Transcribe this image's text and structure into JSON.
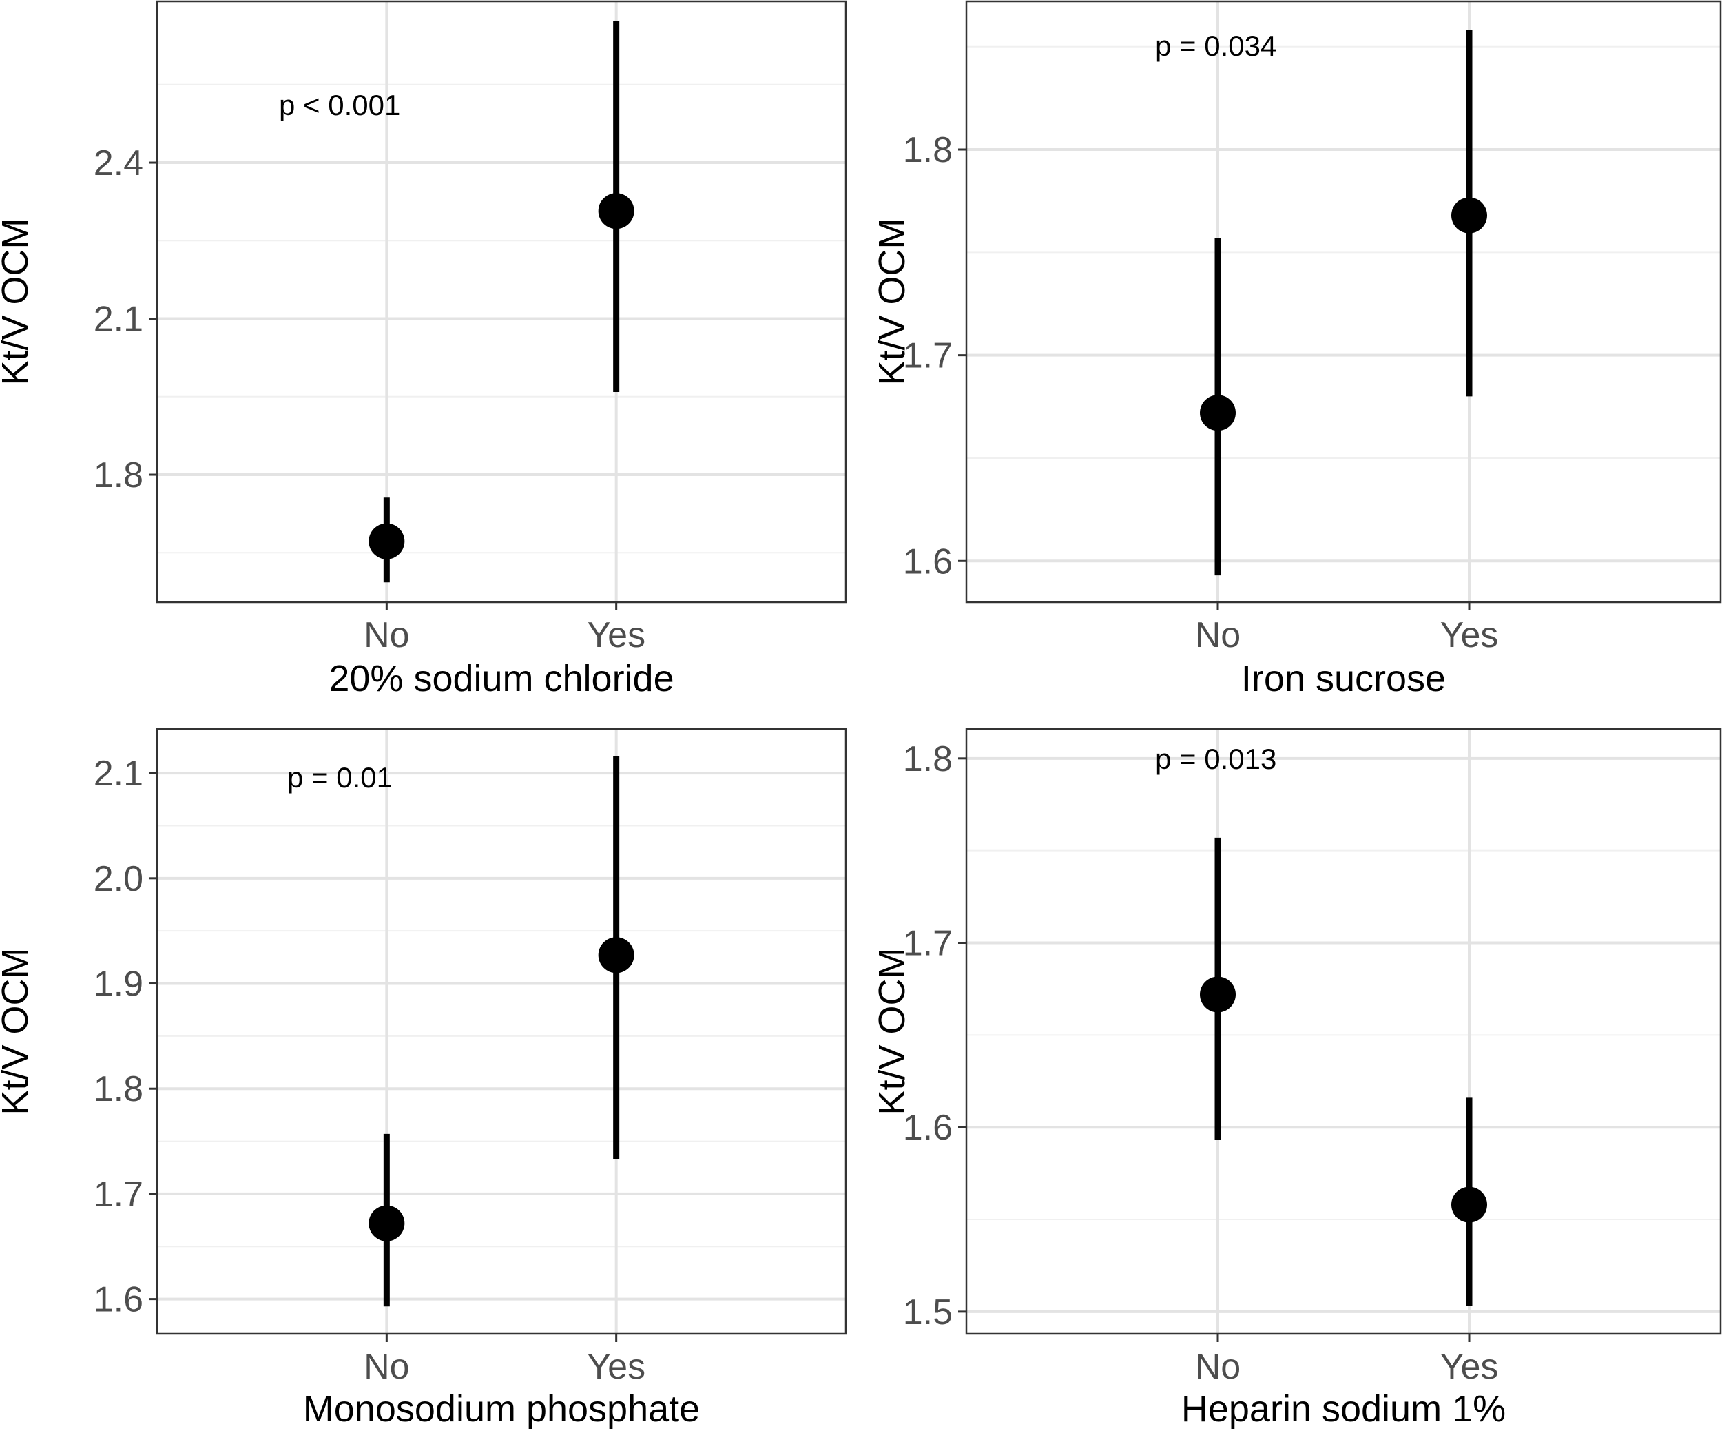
{
  "chart_data": [
    {
      "type": "pointrange",
      "xlabel": "20% sodium chloride",
      "ylabel": "Kt/V OCM",
      "annotation": "p < 0.001",
      "categories": [
        "No",
        "Yes"
      ],
      "ylim": [
        1.555,
        2.71
      ],
      "yticks": [
        1.8,
        2.1,
        2.4
      ],
      "ytick_labels": [
        "1.8",
        "2.1",
        "2.4"
      ],
      "minor_yticks": [
        1.65,
        1.95,
        2.25,
        2.55
      ],
      "points": [
        {
          "category": "No",
          "estimate": 1.672,
          "lower": 1.593,
          "upper": 1.756
        },
        {
          "category": "Yes",
          "estimate": 2.307,
          "lower": 1.959,
          "upper": 2.672
        }
      ],
      "grid": true
    },
    {
      "type": "pointrange",
      "xlabel": "Iron sucrose",
      "ylabel": "Kt/V OCM",
      "annotation": "p = 0.034",
      "categories": [
        "No",
        "Yes"
      ],
      "ylim": [
        1.58,
        1.872
      ],
      "yticks": [
        1.6,
        1.7,
        1.8
      ],
      "ytick_labels": [
        "1.6",
        "1.7",
        "1.8"
      ],
      "minor_yticks": [
        1.65,
        1.75,
        1.85
      ],
      "points": [
        {
          "category": "No",
          "estimate": 1.672,
          "lower": 1.593,
          "upper": 1.757
        },
        {
          "category": "Yes",
          "estimate": 1.768,
          "lower": 1.68,
          "upper": 1.858
        }
      ],
      "grid": true
    },
    {
      "type": "pointrange",
      "xlabel": "Monosodium phosphate",
      "ylabel": "Kt/V OCM",
      "annotation": "p = 0.01",
      "categories": [
        "No",
        "Yes"
      ],
      "ylim": [
        1.567,
        2.142
      ],
      "yticks": [
        1.6,
        1.7,
        1.8,
        1.9,
        2.0,
        2.1
      ],
      "ytick_labels": [
        "1.6",
        "1.7",
        "1.8",
        "1.9",
        "2.0",
        "2.1"
      ],
      "minor_yticks": [
        1.65,
        1.75,
        1.85,
        1.95,
        2.05
      ],
      "points": [
        {
          "category": "No",
          "estimate": 1.672,
          "lower": 1.593,
          "upper": 1.757
        },
        {
          "category": "Yes",
          "estimate": 1.927,
          "lower": 1.733,
          "upper": 2.116
        }
      ],
      "grid": true
    },
    {
      "type": "pointrange",
      "xlabel": "Heparin sodium 1%",
      "ylabel": "Kt/V OCM",
      "annotation": "p = 0.013",
      "categories": [
        "No",
        "Yes"
      ],
      "ylim": [
        1.488,
        1.816
      ],
      "yticks": [
        1.5,
        1.6,
        1.7,
        1.8
      ],
      "ytick_labels": [
        "1.5",
        "1.6",
        "1.7",
        "1.8"
      ],
      "minor_yticks": [
        1.55,
        1.65,
        1.75
      ],
      "points": [
        {
          "category": "No",
          "estimate": 1.672,
          "lower": 1.593,
          "upper": 1.757
        },
        {
          "category": "Yes",
          "estimate": 1.558,
          "lower": 1.503,
          "upper": 1.616
        }
      ],
      "grid": true
    }
  ]
}
